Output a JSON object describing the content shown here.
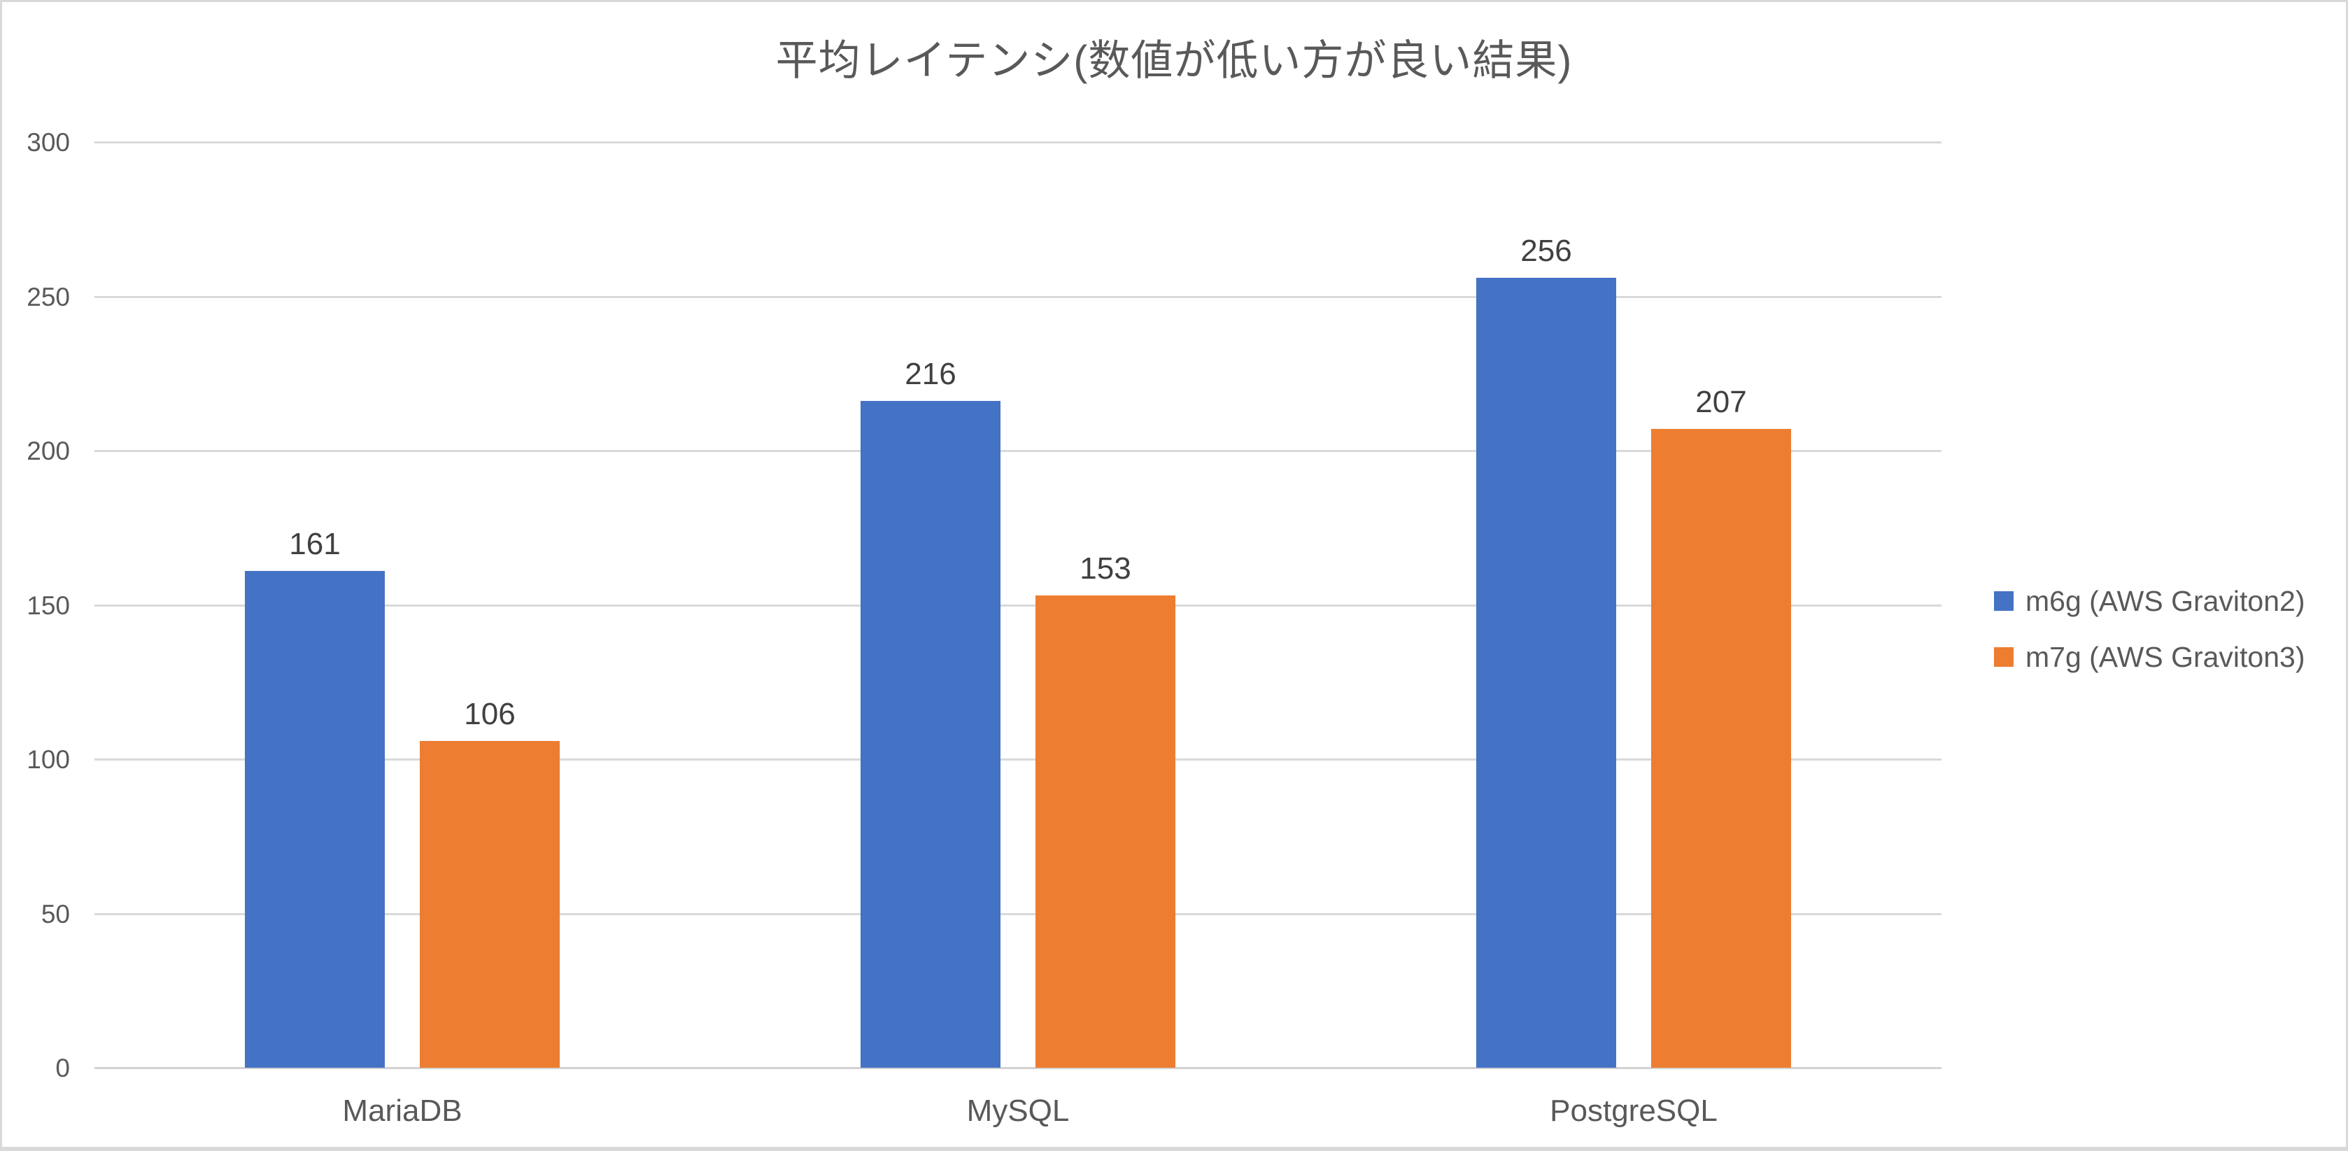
{
  "chart_data": {
    "type": "bar",
    "title": "平均レイテンシ(数値が低い方が良い結果)",
    "categories": [
      "MariaDB",
      "MySQL",
      "PostgreSQL"
    ],
    "series": [
      {
        "name": "m6g (AWS Graviton2)",
        "color": "#4472C4",
        "values": [
          161,
          216,
          256
        ]
      },
      {
        "name": "m7g (AWS Graviton3)",
        "color": "#ED7D31",
        "values": [
          106,
          153,
          207
        ]
      }
    ],
    "data_labels": [
      [
        "161",
        "216",
        "256"
      ],
      [
        "106",
        "153",
        "207"
      ]
    ],
    "ylim": [
      0,
      300
    ],
    "yticks": [
      "0",
      "50",
      "100",
      "150",
      "200",
      "250",
      "300"
    ],
    "xlabel": "",
    "ylabel": "",
    "grid": true,
    "legend_position": "right"
  },
  "style_colors": {
    "gridline": "#D9D9D9",
    "axis_text": "#595959",
    "title_text": "#595959",
    "data_label_text": "#404040",
    "background": "#FFFFFF",
    "frame_border": "#D9D9D9"
  }
}
